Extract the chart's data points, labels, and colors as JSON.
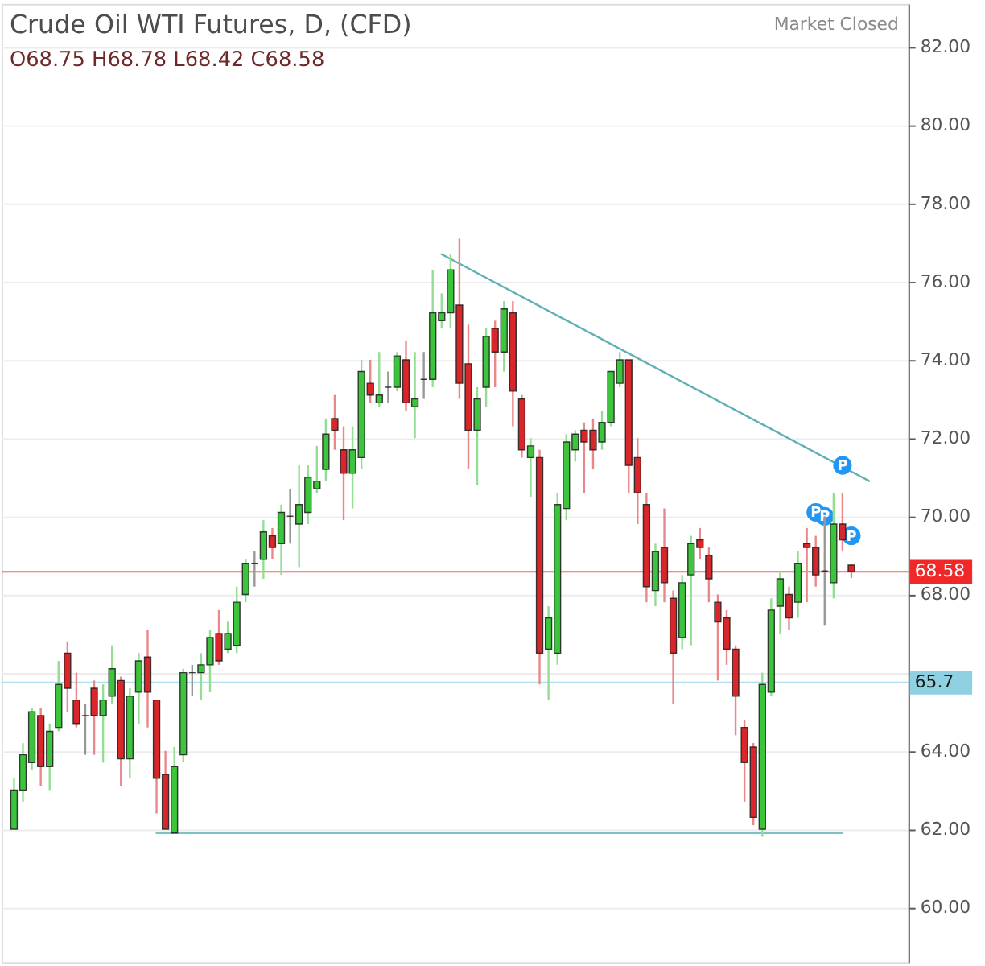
{
  "chart_data": {
    "type": "candlestick",
    "title": "Crude Oil WTI Futures, D, (CFD)",
    "subtitle": "O68.75 H68.78 L68.42 C68.58",
    "annotations": [
      "Market Closed"
    ],
    "categories": [
      null,
      null,
      null,
      null,
      null,
      null,
      null,
      null,
      null,
      null,
      null,
      null,
      null,
      null,
      null,
      null,
      null,
      null,
      null,
      null,
      null,
      null,
      null,
      null,
      null,
      null,
      null,
      null,
      null,
      null,
      null,
      null,
      null,
      null,
      null,
      null,
      null,
      null,
      null,
      null,
      null,
      null,
      null,
      null,
      null,
      null,
      null,
      null,
      null,
      null,
      null,
      null,
      null,
      null,
      null,
      null,
      null,
      null,
      null,
      null,
      null,
      null,
      null,
      null,
      null,
      null,
      null,
      null,
      null,
      null,
      null,
      null,
      null,
      null,
      null,
      null,
      null,
      null,
      null,
      null,
      null,
      null,
      null,
      null,
      null,
      null,
      null,
      null,
      null,
      null,
      null,
      null,
      null,
      null,
      null,
      null,
      null,
      null,
      null,
      null
    ],
    "ohlc": [
      [
        62.0,
        63.3,
        62.0,
        63.0
      ],
      [
        63.0,
        64.2,
        62.7,
        63.9
      ],
      [
        63.7,
        65.1,
        63.5,
        65.0
      ],
      [
        64.9,
        65.1,
        63.1,
        63.6
      ],
      [
        63.6,
        64.7,
        63.0,
        64.5
      ],
      [
        64.6,
        66.3,
        64.5,
        65.7
      ],
      [
        66.5,
        66.8,
        65.0,
        65.6
      ],
      [
        65.3,
        66.0,
        64.6,
        64.7
      ],
      [
        64.9,
        65.2,
        63.9,
        64.9
      ],
      [
        65.6,
        65.8,
        63.9,
        64.9
      ],
      [
        64.9,
        65.7,
        63.7,
        65.3
      ],
      [
        65.4,
        66.7,
        65.2,
        66.1
      ],
      [
        65.8,
        65.9,
        63.1,
        63.8
      ],
      [
        63.8,
        65.6,
        63.3,
        65.4
      ],
      [
        65.5,
        66.5,
        64.7,
        66.3
      ],
      [
        66.4,
        67.1,
        64.6,
        65.5
      ],
      [
        65.3,
        65.3,
        62.4,
        63.3
      ],
      [
        63.4,
        64.0,
        62.0,
        62.0
      ],
      [
        61.9,
        64.1,
        61.9,
        63.6
      ],
      [
        63.9,
        66.1,
        63.7,
        66.0
      ],
      [
        66.0,
        66.2,
        65.4,
        66.0
      ],
      [
        66.0,
        66.5,
        65.3,
        66.2
      ],
      [
        66.2,
        67.1,
        65.5,
        66.9
      ],
      [
        67.0,
        67.6,
        66.2,
        66.3
      ],
      [
        66.6,
        67.3,
        66.5,
        67.0
      ],
      [
        66.7,
        68.2,
        66.5,
        67.8
      ],
      [
        68.0,
        68.9,
        67.8,
        68.8
      ],
      [
        68.8,
        69.1,
        68.2,
        68.8
      ],
      [
        68.9,
        69.9,
        68.4,
        69.6
      ],
      [
        69.5,
        69.7,
        68.9,
        69.2
      ],
      [
        69.3,
        70.3,
        68.5,
        70.1
      ],
      [
        70.0,
        70.7,
        69.3,
        70.0
      ],
      [
        69.8,
        71.3,
        68.7,
        70.3
      ],
      [
        70.1,
        71.3,
        69.8,
        71.0
      ],
      [
        70.7,
        71.8,
        70.6,
        70.9
      ],
      [
        71.2,
        72.5,
        70.9,
        72.1
      ],
      [
        72.5,
        73.1,
        71.7,
        72.2
      ],
      [
        71.7,
        72.3,
        69.9,
        71.1
      ],
      [
        71.1,
        72.3,
        70.2,
        71.7
      ],
      [
        71.5,
        74.0,
        71.2,
        73.7
      ],
      [
        73.4,
        74.0,
        72.9,
        73.1
      ],
      [
        72.9,
        74.2,
        72.8,
        73.1
      ],
      [
        73.3,
        73.7,
        72.9,
        73.3
      ],
      [
        73.3,
        74.2,
        73.2,
        74.1
      ],
      [
        74.0,
        74.5,
        72.7,
        72.9
      ],
      [
        72.8,
        74.2,
        72.0,
        73.0
      ],
      [
        73.5,
        74.2,
        73.0,
        73.5
      ],
      [
        73.5,
        76.3,
        73.3,
        75.2
      ],
      [
        75.0,
        75.7,
        74.8,
        75.2
      ],
      [
        75.2,
        76.7,
        74.8,
        76.3
      ],
      [
        75.4,
        77.1,
        73.0,
        73.4
      ],
      [
        73.9,
        74.9,
        71.2,
        72.2
      ],
      [
        72.2,
        73.3,
        70.8,
        73.0
      ],
      [
        73.3,
        74.8,
        72.8,
        74.6
      ],
      [
        74.8,
        75.0,
        73.3,
        74.2
      ],
      [
        74.2,
        75.5,
        73.7,
        75.3
      ],
      [
        75.2,
        75.5,
        72.3,
        73.2
      ],
      [
        73.0,
        73.1,
        71.5,
        71.7
      ],
      [
        71.5,
        72.0,
        70.5,
        71.8
      ],
      [
        71.5,
        71.7,
        65.7,
        66.5
      ],
      [
        66.6,
        67.7,
        65.3,
        67.4
      ],
      [
        66.5,
        70.6,
        66.2,
        70.3
      ],
      [
        70.2,
        72.1,
        69.9,
        71.9
      ],
      [
        71.7,
        72.2,
        71.4,
        72.1
      ],
      [
        72.2,
        72.4,
        70.6,
        71.9
      ],
      [
        72.2,
        72.5,
        71.2,
        71.7
      ],
      [
        71.9,
        72.7,
        71.7,
        72.4
      ],
      [
        72.4,
        73.7,
        72.3,
        73.7
      ],
      [
        73.4,
        74.2,
        73.3,
        74.0
      ],
      [
        74.0,
        74.0,
        70.6,
        71.3
      ],
      [
        71.5,
        72.0,
        69.8,
        70.6
      ],
      [
        70.3,
        70.6,
        67.8,
        68.2
      ],
      [
        68.1,
        69.3,
        67.7,
        69.1
      ],
      [
        69.2,
        70.2,
        67.8,
        68.3
      ],
      [
        67.9,
        68.1,
        65.2,
        66.5
      ],
      [
        66.9,
        68.5,
        66.6,
        68.3
      ],
      [
        68.5,
        69.5,
        66.7,
        69.3
      ],
      [
        69.4,
        69.7,
        68.9,
        69.2
      ],
      [
        69.0,
        69.2,
        67.8,
        68.4
      ],
      [
        67.8,
        68.0,
        65.8,
        67.3
      ],
      [
        67.4,
        67.6,
        66.2,
        66.6
      ],
      [
        66.6,
        66.7,
        64.4,
        65.4
      ],
      [
        64.6,
        64.8,
        62.7,
        63.7
      ],
      [
        64.1,
        64.2,
        62.1,
        62.3
      ],
      [
        62.0,
        66.0,
        61.8,
        65.7
      ],
      [
        65.5,
        67.9,
        65.4,
        67.6
      ],
      [
        67.7,
        68.6,
        67.0,
        68.4
      ],
      [
        68.0,
        68.2,
        67.1,
        67.4
      ],
      [
        67.8,
        69.1,
        67.4,
        68.8
      ],
      [
        69.3,
        69.7,
        67.8,
        69.2
      ],
      [
        69.2,
        69.5,
        68.2,
        68.5
      ],
      [
        68.6,
        70.0,
        67.2,
        68.6
      ],
      [
        68.3,
        70.6,
        67.9,
        69.8
      ],
      [
        69.8,
        70.6,
        69.1,
        69.4
      ],
      [
        68.75,
        68.78,
        68.42,
        68.58
      ],
      null,
      null,
      null,
      null,
      null
    ],
    "colors": [
      "#3cc43c",
      "#3cc43c",
      "#3cc43c",
      "#d9262a",
      "#3cc43c",
      "#3cc43c",
      "#d9262a",
      "#d9262a",
      "#444444",
      "#d9262a",
      "#3cc43c",
      "#3cc43c",
      "#d9262a",
      "#3cc43c",
      "#3cc43c",
      "#d9262a",
      "#d9262a",
      "#d9262a",
      "#3cc43c",
      "#3cc43c",
      "#444444",
      "#3cc43c",
      "#3cc43c",
      "#d9262a",
      "#3cc43c",
      "#3cc43c",
      "#3cc43c",
      "#444444",
      "#3cc43c",
      "#d9262a",
      "#3cc43c",
      "#444444",
      "#3cc43c",
      "#3cc43c",
      "#3cc43c",
      "#3cc43c",
      "#d9262a",
      "#d9262a",
      "#3cc43c",
      "#3cc43c",
      "#d9262a",
      "#3cc43c",
      "#444444",
      "#3cc43c",
      "#d9262a",
      "#3cc43c",
      "#444444",
      "#3cc43c",
      "#3cc43c",
      "#3cc43c",
      "#d9262a",
      "#d9262a",
      "#3cc43c",
      "#3cc43c",
      "#d9262a",
      "#3cc43c",
      "#d9262a",
      "#d9262a",
      "#3cc43c",
      "#d9262a",
      "#3cc43c",
      "#3cc43c",
      "#3cc43c",
      "#3cc43c",
      "#d9262a",
      "#d9262a",
      "#3cc43c",
      "#3cc43c",
      "#3cc43c",
      "#d9262a",
      "#d9262a",
      "#d9262a",
      "#3cc43c",
      "#d9262a",
      "#d9262a",
      "#3cc43c",
      "#3cc43c",
      "#d9262a",
      "#d9262a",
      "#d9262a",
      "#d9262a",
      "#d9262a",
      "#d9262a",
      "#d9262a",
      "#3cc43c",
      "#3cc43c",
      "#3cc43c",
      "#d9262a",
      "#3cc43c",
      "#d9262a",
      "#d9262a",
      "#444444",
      "#3cc43c",
      "#d9262a",
      "#d9262a",
      null,
      null,
      null,
      null,
      null
    ],
    "series": [
      {
        "type": "line",
        "color": "#5fb0b4",
        "values": [
          null,
          null,
          null,
          null,
          null,
          null,
          null,
          null,
          null,
          null,
          null,
          null,
          null,
          null,
          null,
          null,
          null,
          null,
          null,
          null,
          null,
          null,
          null,
          null,
          null,
          null,
          null,
          null,
          null,
          null,
          null,
          null,
          null,
          null,
          null,
          null,
          null,
          null,
          null,
          null,
          null,
          null,
          null,
          null,
          null,
          null,
          null,
          null,
          76.7,
          null,
          null,
          null,
          null,
          null,
          null,
          null,
          null,
          null,
          null,
          null,
          null,
          null,
          null,
          null,
          null,
          null,
          null,
          null,
          null,
          null,
          null,
          null,
          null,
          null,
          null,
          null,
          null,
          null,
          null,
          null,
          null,
          null,
          null,
          null,
          null,
          null,
          null,
          null,
          null,
          null,
          null,
          null,
          null,
          null,
          null,
          null,
          70.9,
          null,
          null,
          null
        ]
      },
      {
        "type": "line",
        "color": "#7cc2c4",
        "values": [
          null,
          null,
          null,
          null,
          null,
          null,
          null,
          null,
          null,
          null,
          null,
          null,
          null,
          null,
          null,
          null,
          61.9,
          null,
          null,
          null,
          null,
          null,
          null,
          null,
          null,
          null,
          null,
          null,
          null,
          null,
          null,
          null,
          null,
          null,
          null,
          null,
          null,
          null,
          null,
          null,
          null,
          null,
          null,
          null,
          null,
          null,
          null,
          null,
          null,
          null,
          null,
          null,
          null,
          null,
          null,
          null,
          null,
          null,
          null,
          null,
          null,
          null,
          null,
          null,
          null,
          null,
          null,
          null,
          null,
          null,
          null,
          null,
          null,
          null,
          null,
          null,
          null,
          null,
          null,
          null,
          null,
          null,
          null,
          null,
          null,
          null,
          null,
          null,
          null,
          null,
          null,
          null,
          null,
          61.9,
          null,
          null,
          null,
          null,
          null,
          null
        ]
      },
      {
        "type": "scatter",
        "name": "P",
        "color": "#2196f3",
        "marker": "circle",
        "values": [
          null,
          null,
          null,
          null,
          null,
          null,
          null,
          null,
          null,
          null,
          null,
          null,
          null,
          null,
          null,
          null,
          null,
          null,
          null,
          null,
          null,
          null,
          null,
          null,
          null,
          null,
          null,
          null,
          null,
          null,
          null,
          null,
          null,
          null,
          null,
          null,
          null,
          null,
          null,
          null,
          null,
          null,
          null,
          null,
          null,
          null,
          null,
          null,
          null,
          null,
          null,
          null,
          null,
          null,
          null,
          null,
          null,
          null,
          null,
          null,
          null,
          null,
          null,
          null,
          null,
          null,
          null,
          null,
          null,
          null,
          null,
          null,
          null,
          null,
          null,
          null,
          null,
          null,
          null,
          null,
          null,
          null,
          null,
          null,
          null,
          null,
          null,
          null,
          null,
          null,
          70.1,
          70.0,
          null,
          71.3,
          69.5,
          null,
          null,
          null,
          null,
          null
        ]
      }
    ],
    "ref_lines": [
      {
        "axis": "y",
        "value": 68.58,
        "label": "68.58",
        "color": "#f02828"
      },
      {
        "axis": "y",
        "value": 65.75,
        "label": "65.7",
        "color": "#8fd0e2"
      }
    ],
    "ylim": [
      58.6,
      83.1
    ],
    "yticks": [
      {
        "value": 60,
        "label": "60.00"
      },
      {
        "value": 62,
        "label": "62.00"
      },
      {
        "value": 64,
        "label": "64.00"
      },
      {
        "value": 66,
        "label": null
      },
      {
        "value": 68,
        "label": "68.00"
      },
      {
        "value": 70,
        "label": "70.00"
      },
      {
        "value": 72,
        "label": "72.00"
      },
      {
        "value": 74,
        "label": "74.00"
      },
      {
        "value": 76,
        "label": "76.00"
      },
      {
        "value": 78,
        "label": "78.00"
      },
      {
        "value": 80,
        "label": "80.00"
      },
      {
        "value": 82,
        "label": "82.00"
      }
    ],
    "grid": "y",
    "tick_labels": "y"
  }
}
